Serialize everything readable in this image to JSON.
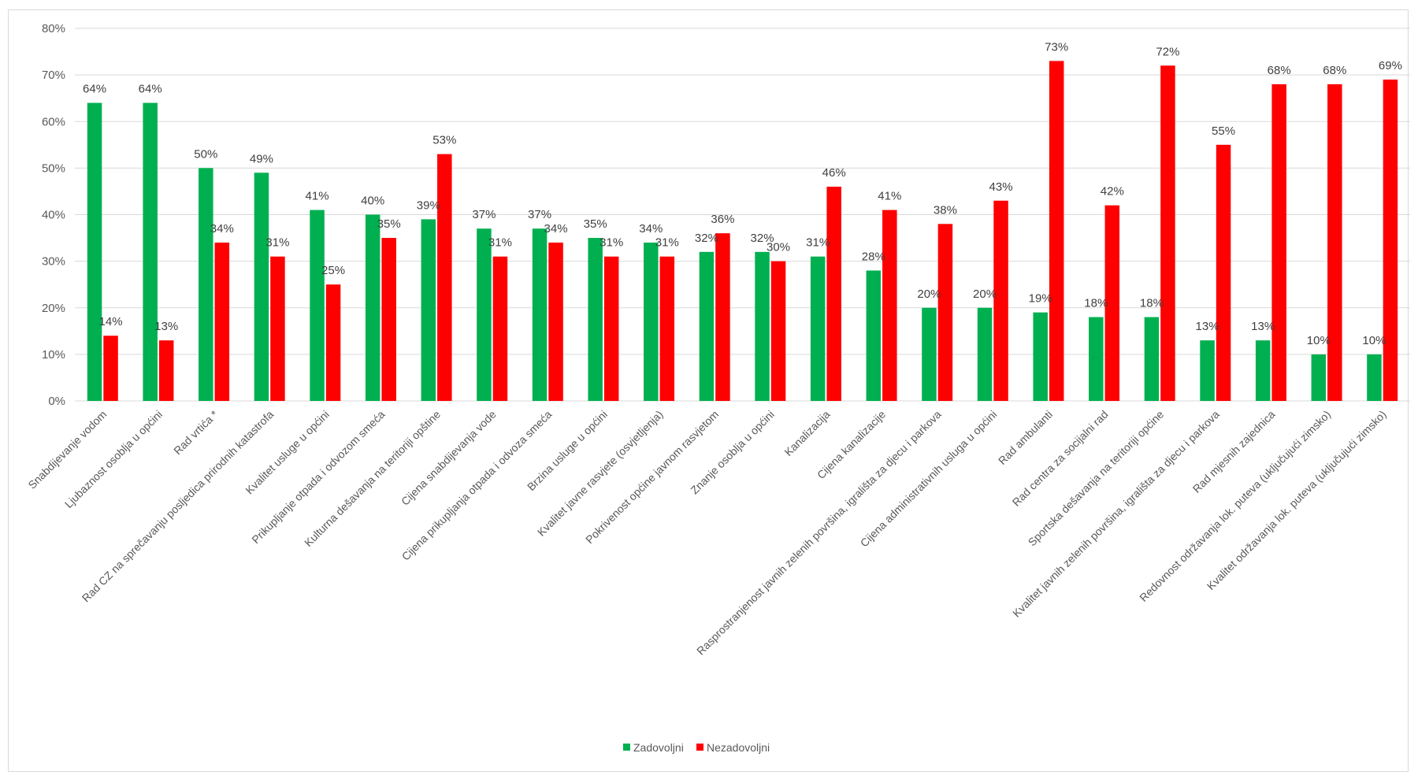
{
  "chart_data": {
    "type": "bar",
    "ylim": [
      0,
      80
    ],
    "yticks": [
      "0%",
      "10%",
      "20%",
      "30%",
      "40%",
      "50%",
      "60%",
      "70%",
      "80%"
    ],
    "grid": true,
    "legend_position": "bottom",
    "categories": [
      "Snabdijevanje vodom",
      "Ljubaznost osoblja u općini",
      "Rad vrtića *",
      "Rad CZ na sprečavanju posljedica prirodnih katastrofa",
      "Kvalitet usluge u općini",
      "Prikupljanje otpada i odvozom smeća",
      "Kulturna dešavanja na teritoriji opštine",
      "Cijena snabdijevanja vode",
      "Cijena prikupljanja otpada i odvoza smeća",
      "Brzina usluge u općini",
      "Kvalitet javne rasvjete (osvjetljenja)",
      "Pokrivenost općine javnom rasvjetom",
      "Znanje osoblja u općini",
      "Kanalizacija",
      "Cijena kanalizacije",
      "Rasprostranjenost javnih zelenih površina, igrališta za djecu i parkova",
      "Cijena administrativnih usluga u općini",
      "Rad ambulanti",
      "Rad centra za socijalni rad",
      "Sportska dešavanja na teritoriji općine",
      "Kvalitet javnih zelenih površina, igrališta za djecu i parkova",
      "Rad mjesnih zajednica",
      "Redovnost održavanja lok. puteva (uključujući zimsko)",
      "Kvalitet održavanja lok. puteva (uključujući zimsko)"
    ],
    "series": [
      {
        "name": "Zadovoljni",
        "color": "#00b050",
        "values": [
          64,
          64,
          50,
          49,
          41,
          40,
          39,
          37,
          37,
          35,
          34,
          32,
          32,
          31,
          28,
          20,
          20,
          19,
          18,
          18,
          13,
          13,
          10,
          10
        ],
        "labels": [
          "64%",
          "64%",
          "50%",
          "49%",
          "41%",
          "40%",
          "39%",
          "37%",
          "37%",
          "35%",
          "34%",
          "32%",
          "32%",
          "31%",
          "28%",
          "20%",
          "20%",
          "19%",
          "18%",
          "18%",
          "13%",
          "13%",
          "10%",
          "10%"
        ]
      },
      {
        "name": "Nezadovoljni",
        "color": "#ff0000",
        "values": [
          14,
          13,
          34,
          31,
          25,
          35,
          53,
          31,
          34,
          31,
          31,
          36,
          30,
          46,
          41,
          38,
          43,
          73,
          42,
          72,
          55,
          68,
          68,
          69
        ],
        "labels": [
          "14%",
          "13%",
          "34%",
          "31%",
          "25%",
          "35%",
          "53%",
          "31%",
          "34%",
          "31%",
          "31%",
          "36%",
          "30%",
          "46%",
          "41%",
          "38%",
          "43%",
          "73%",
          "42%",
          "72%",
          "55%",
          "68%",
          "68%",
          "69%"
        ]
      }
    ]
  }
}
